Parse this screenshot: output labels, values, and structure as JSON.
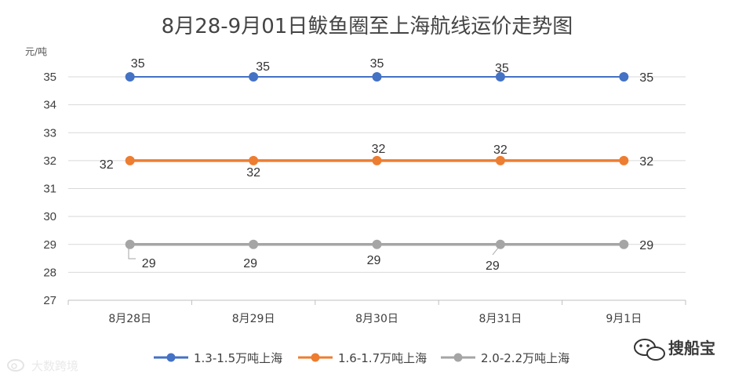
{
  "chart_data": {
    "type": "line",
    "title": "8月28-9月01日鲅鱼圈至上海航线运价走势图",
    "ylabel": "元/吨",
    "xlabel": "",
    "categories": [
      "8月28日",
      "8月29日",
      "8月30日",
      "8月31日",
      "9月1日"
    ],
    "ylim": [
      27,
      35
    ],
    "yticks": [
      27,
      28,
      29,
      30,
      31,
      32,
      33,
      34,
      35
    ],
    "grid": true,
    "legend_position": "bottom",
    "series": [
      {
        "name": "1.3-1.5万吨上海",
        "color": "#4472c4",
        "values": [
          35,
          35,
          35,
          35,
          35
        ]
      },
      {
        "name": "1.6-1.7万吨上海",
        "color": "#ed7d31",
        "values": [
          32,
          32,
          32,
          32,
          32
        ]
      },
      {
        "name": "2.0-2.2万吨上海",
        "color": "#a5a5a5",
        "values": [
          29,
          29,
          29,
          29,
          29
        ]
      }
    ]
  },
  "watermarks": {
    "left": "大数跨境",
    "right": "搜船宝"
  }
}
